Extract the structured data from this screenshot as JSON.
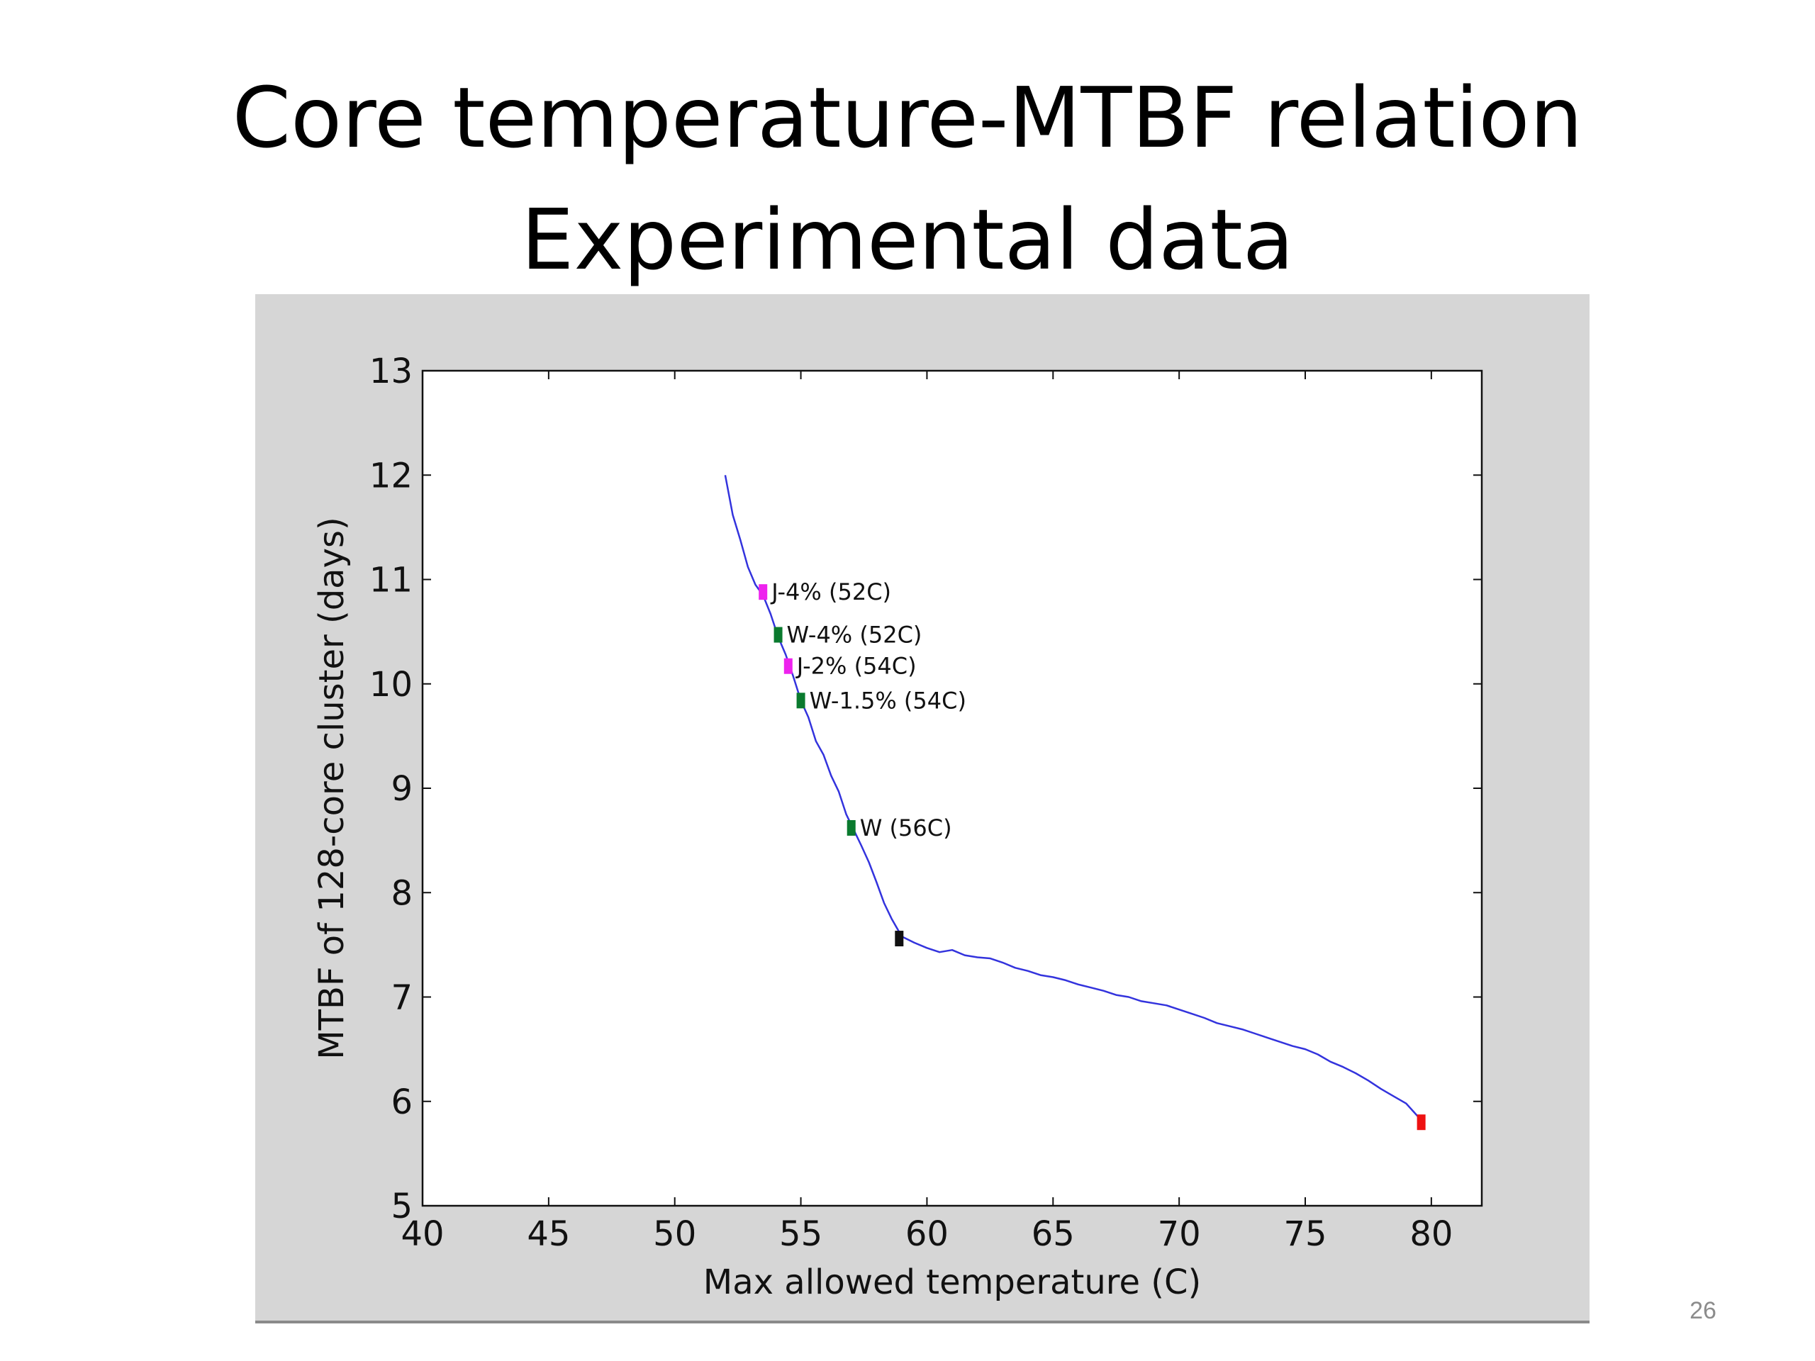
{
  "slide": {
    "title_line1": "Core temperature-MTBF relation",
    "title_line2": "Experimental data",
    "page_number": "26"
  },
  "chart_data": {
    "type": "line",
    "xlabel": "Max allowed temperature (C)",
    "ylabel": "MTBF of 128-core cluster (days)",
    "xlim": [
      40,
      82
    ],
    "ylim": [
      5,
      13
    ],
    "xticks": [
      40,
      45,
      50,
      55,
      60,
      65,
      70,
      75,
      80
    ],
    "yticks": [
      5,
      6,
      7,
      8,
      9,
      10,
      11,
      12,
      13
    ],
    "grid": false,
    "line_color": "#3333dd",
    "series": [
      {
        "x": [
          52.0,
          52.3,
          52.6,
          52.9,
          53.2,
          53.5,
          53.8,
          54.1,
          54.4,
          54.7,
          55.0,
          55.3,
          55.6,
          55.9,
          56.2,
          56.5,
          56.8,
          57.1,
          57.4,
          57.7,
          58.0,
          58.3,
          58.6,
          59.0,
          59.5,
          60.0,
          60.5,
          61.0,
          61.5,
          62.0,
          62.5,
          63.0,
          63.5,
          64.0,
          64.5,
          65.0,
          65.5,
          66.0,
          66.5,
          67.0,
          67.5,
          68.0,
          68.5,
          69.0,
          69.5,
          70.0,
          70.5,
          71.0,
          71.5,
          72.0,
          72.5,
          73.0,
          73.5,
          74.0,
          74.5,
          75.0,
          75.5,
          76.0,
          76.5,
          77.0,
          77.5,
          78.0,
          78.5,
          79.0,
          79.3,
          79.6
        ],
        "y": [
          12.0,
          11.62,
          11.38,
          11.12,
          10.95,
          10.85,
          10.67,
          10.45,
          10.28,
          10.07,
          9.84,
          9.68,
          9.45,
          9.32,
          9.12,
          8.97,
          8.75,
          8.6,
          8.45,
          8.29,
          8.1,
          7.9,
          7.75,
          7.58,
          7.52,
          7.47,
          7.43,
          7.45,
          7.4,
          7.38,
          7.37,
          7.33,
          7.28,
          7.25,
          7.21,
          7.19,
          7.16,
          7.12,
          7.09,
          7.06,
          7.02,
          7.0,
          6.96,
          6.94,
          6.92,
          6.88,
          6.84,
          6.8,
          6.75,
          6.72,
          6.69,
          6.65,
          6.61,
          6.57,
          6.53,
          6.5,
          6.45,
          6.38,
          6.33,
          6.27,
          6.2,
          6.12,
          6.05,
          5.98,
          5.9,
          5.82
        ]
      }
    ],
    "markers": [
      {
        "label": "J-4% (52C)",
        "x": 53.5,
        "y": 10.88,
        "color": "#ee22ee"
      },
      {
        "label": "W-4% (52C)",
        "x": 54.1,
        "y": 10.47,
        "color": "#0a7a2e"
      },
      {
        "label": "J-2% (54C)",
        "x": 54.5,
        "y": 10.17,
        "color": "#ee22ee"
      },
      {
        "label": "W-1.5% (54C)",
        "x": 55.0,
        "y": 9.84,
        "color": "#0a7a2e"
      },
      {
        "label": "W (56C)",
        "x": 57.0,
        "y": 8.62,
        "color": "#0a7a2e"
      },
      {
        "label": "",
        "x": 58.9,
        "y": 7.56,
        "color": "#111111"
      },
      {
        "label": "",
        "x": 79.6,
        "y": 5.8,
        "color": "#ee1111"
      }
    ]
  }
}
